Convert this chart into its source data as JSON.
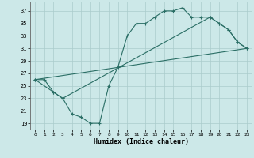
{
  "xlabel": "Humidex (Indice chaleur)",
  "background_color": "#cce8e8",
  "grid_color": "#aacccc",
  "line_color": "#2a6e65",
  "xlim": [
    -0.5,
    23.5
  ],
  "ylim": [
    18.0,
    38.5
  ],
  "xticks": [
    0,
    1,
    2,
    3,
    4,
    5,
    6,
    7,
    8,
    9,
    10,
    11,
    12,
    13,
    14,
    15,
    16,
    17,
    18,
    19,
    20,
    21,
    22,
    23
  ],
  "yticks": [
    19,
    21,
    23,
    25,
    27,
    29,
    31,
    33,
    35,
    37
  ],
  "line1_x": [
    0,
    1,
    2,
    3,
    4,
    5,
    6,
    7,
    8,
    9,
    10,
    11,
    12,
    13,
    14,
    15,
    16,
    17,
    18,
    19,
    20,
    21,
    22,
    23
  ],
  "line1_y": [
    26,
    26,
    24,
    23,
    20.5,
    20,
    19,
    19,
    25,
    28,
    33,
    35,
    35,
    36,
    37,
    37,
    37.5,
    36,
    36,
    36,
    35,
    34,
    32,
    31
  ],
  "line2_x": [
    0,
    2,
    3,
    19,
    20,
    21,
    22,
    23
  ],
  "line2_y": [
    26,
    24,
    23,
    36,
    35,
    34,
    32,
    31
  ],
  "line3_x": [
    0,
    23
  ],
  "line3_y": [
    26,
    31
  ]
}
